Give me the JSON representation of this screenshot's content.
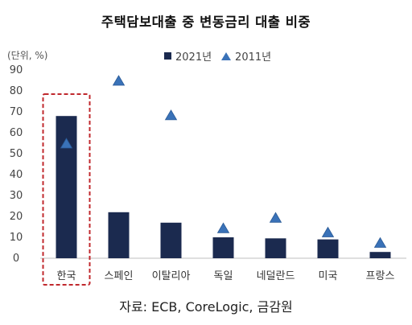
{
  "chart_data": {
    "type": "bar",
    "title": "주택담보대출 중 변동금리 대출 비중",
    "unit_label": "(단위, %)",
    "categories": [
      "한국",
      "스페인",
      "이탈리아",
      "독일",
      "네덜란드",
      "미국",
      "프랑스"
    ],
    "series": [
      {
        "name": "2021년",
        "kind": "bar",
        "color": "#1b2a4f",
        "values": [
          68,
          22,
          17,
          10,
          9.5,
          9,
          3
        ]
      },
      {
        "name": "2011년",
        "kind": "marker-triangle",
        "color": "#3a72b8",
        "values": [
          55,
          85,
          68.5,
          14.5,
          19.5,
          12.5,
          7.5
        ]
      }
    ],
    "ylim": [
      0,
      90
    ],
    "yticks": [
      0,
      10,
      20,
      30,
      40,
      50,
      60,
      70,
      80,
      90
    ],
    "grid": false,
    "legend_position": "top-center",
    "highlight_category": "한국",
    "highlight_color": "#c0282d",
    "source": "자료: ECB, CoreLogic, 금감원"
  }
}
